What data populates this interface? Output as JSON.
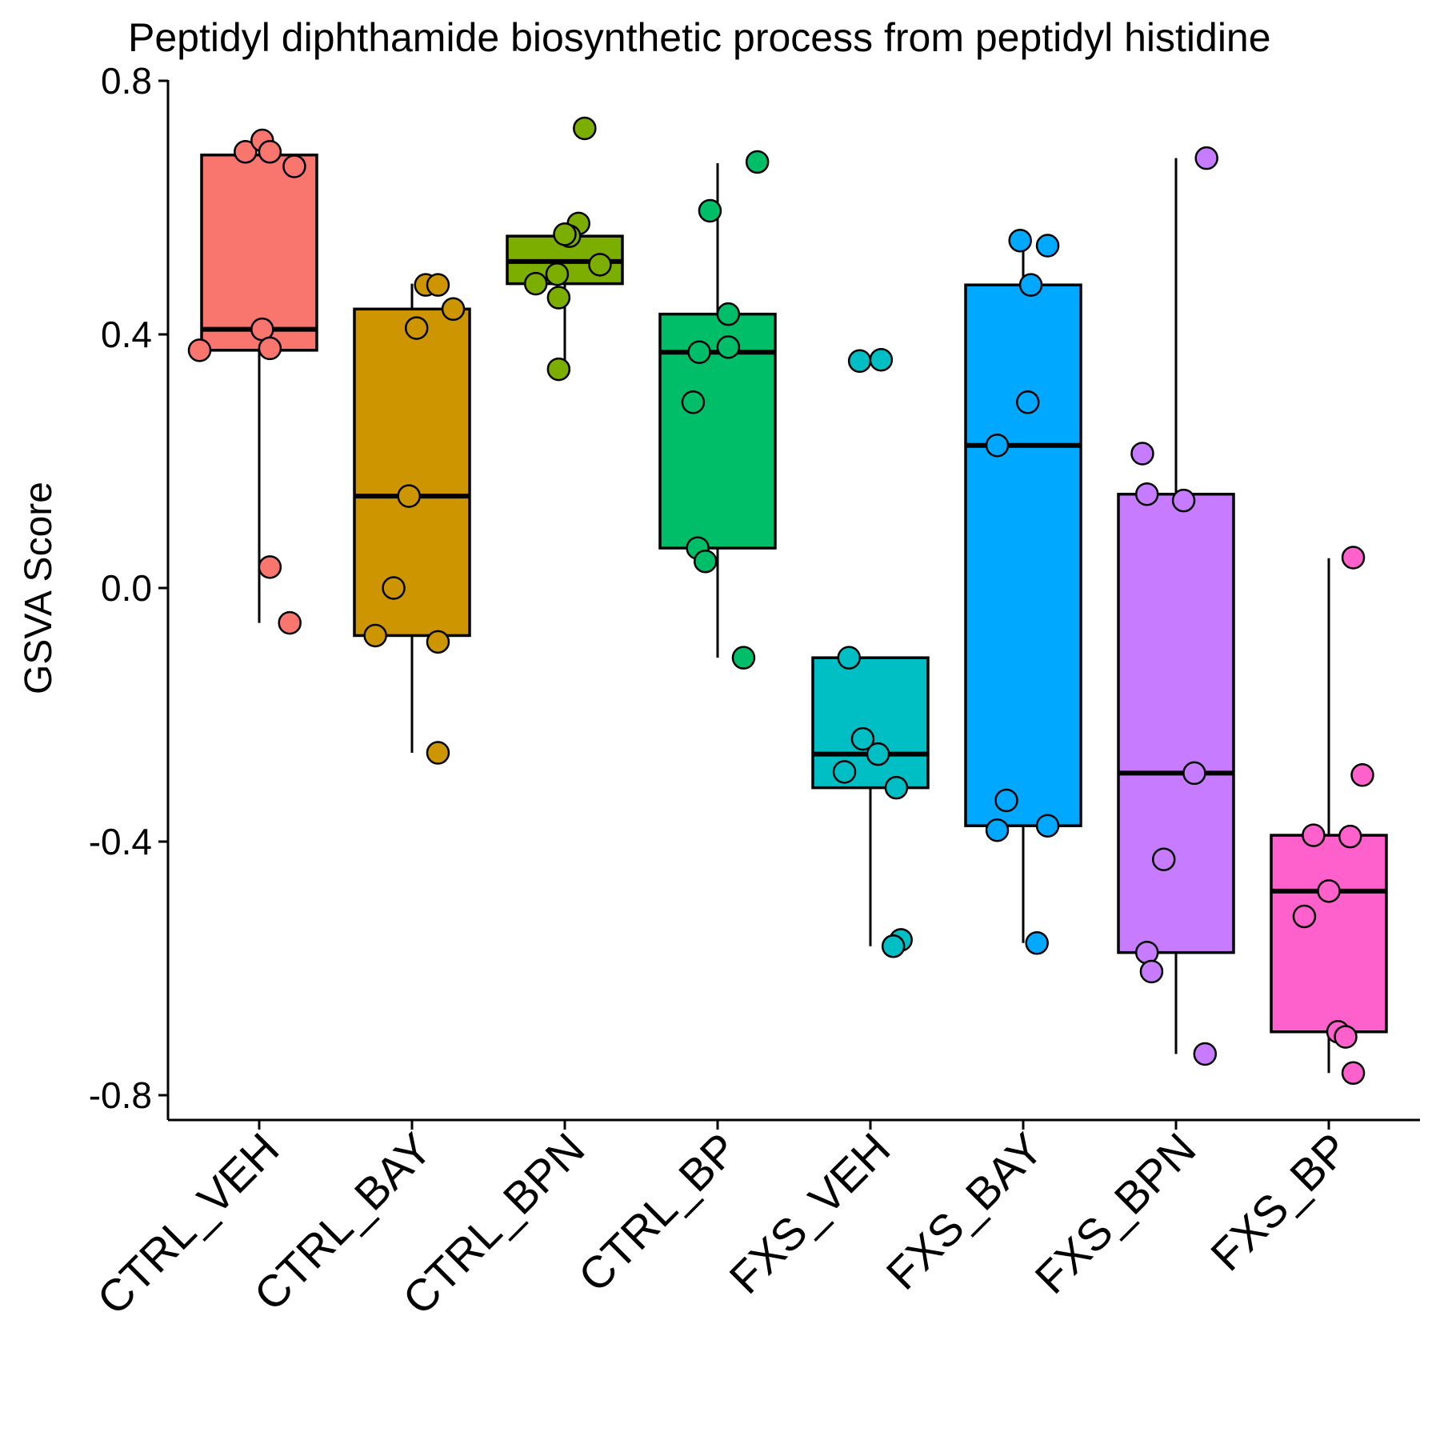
{
  "chart_data": {
    "type": "box",
    "title": "Peptidyl diphthamide biosynthetic process from peptidyl histidine",
    "xlabel": "",
    "ylabel": "GSVA Score",
    "ylim": [
      -0.84,
      0.8
    ],
    "yticks": [
      0.8,
      0.4,
      0.0,
      -0.4,
      -0.8
    ],
    "ytick_labels": [
      "0.8",
      "0.4",
      "0.0",
      "-0.4",
      "-0.8"
    ],
    "grid": false,
    "legend": "none",
    "categories": [
      "CTRL_VEH",
      "CTRL_BAY",
      "CTRL_BPN",
      "CTRL_BP",
      "FXS_VEH",
      "FXS_BAY",
      "FXS_BPN",
      "FXS_BP"
    ],
    "series": [
      {
        "category": "CTRL_VEH",
        "color": "#F8766D",
        "box": {
          "whisker_low": -0.055,
          "q1": 0.375,
          "median": 0.408,
          "q3": 0.683,
          "whisker_high": 0.683
        },
        "points": [
          {
            "x": -0.39,
            "y": 0.375
          },
          {
            "x": -0.09,
            "y": 0.688
          },
          {
            "x": 0.02,
            "y": 0.706
          },
          {
            "x": 0.07,
            "y": 0.688
          },
          {
            "x": 0.23,
            "y": 0.665
          },
          {
            "x": 0.02,
            "y": 0.408
          },
          {
            "x": 0.07,
            "y": 0.378
          },
          {
            "x": 0.07,
            "y": 0.033
          },
          {
            "x": 0.2,
            "y": -0.055
          }
        ]
      },
      {
        "category": "CTRL_BAY",
        "color": "#CD9600",
        "box": {
          "whisker_low": -0.26,
          "q1": -0.075,
          "median": 0.145,
          "q3": 0.44,
          "whisker_high": 0.48
        },
        "points": [
          {
            "x": 0.09,
            "y": 0.478
          },
          {
            "x": 0.17,
            "y": 0.478
          },
          {
            "x": 0.27,
            "y": 0.44
          },
          {
            "x": 0.03,
            "y": 0.41
          },
          {
            "x": -0.02,
            "y": 0.145
          },
          {
            "x": -0.12,
            "y": 0.0
          },
          {
            "x": -0.24,
            "y": -0.075
          },
          {
            "x": 0.17,
            "y": -0.085
          },
          {
            "x": 0.17,
            "y": -0.26
          }
        ]
      },
      {
        "category": "CTRL_BPN",
        "color": "#7CAE00",
        "box": {
          "whisker_low": 0.35,
          "q1": 0.48,
          "median": 0.515,
          "q3": 0.555,
          "whisker_high": 0.555
        },
        "points": [
          {
            "x": 0.13,
            "y": 0.725
          },
          {
            "x": 0.09,
            "y": 0.575
          },
          {
            "x": 0.03,
            "y": 0.555
          },
          {
            "x": 0.0,
            "y": 0.558
          },
          {
            "x": 0.23,
            "y": 0.51
          },
          {
            "x": -0.05,
            "y": 0.495
          },
          {
            "x": -0.19,
            "y": 0.48
          },
          {
            "x": -0.04,
            "y": 0.458
          },
          {
            "x": -0.04,
            "y": 0.345
          }
        ]
      },
      {
        "category": "CTRL_BP",
        "color": "#00BE67",
        "box": {
          "whisker_low": -0.11,
          "q1": 0.063,
          "median": 0.372,
          "q3": 0.432,
          "whisker_high": 0.67
        },
        "points": [
          {
            "x": 0.26,
            "y": 0.672
          },
          {
            "x": -0.05,
            "y": 0.595
          },
          {
            "x": 0.07,
            "y": 0.432
          },
          {
            "x": 0.07,
            "y": 0.38
          },
          {
            "x": -0.12,
            "y": 0.372
          },
          {
            "x": -0.16,
            "y": 0.293
          },
          {
            "x": -0.13,
            "y": 0.063
          },
          {
            "x": -0.08,
            "y": 0.042
          },
          {
            "x": 0.17,
            "y": -0.11
          }
        ]
      },
      {
        "category": "FXS_VEH",
        "color": "#00BFC4",
        "box": {
          "whisker_low": -0.565,
          "q1": -0.315,
          "median": -0.262,
          "q3": -0.11,
          "whisker_high": -0.11
        },
        "points": [
          {
            "x": -0.07,
            "y": 0.358
          },
          {
            "x": 0.07,
            "y": 0.36
          },
          {
            "x": -0.14,
            "y": -0.11
          },
          {
            "x": -0.05,
            "y": -0.238
          },
          {
            "x": 0.05,
            "y": -0.262
          },
          {
            "x": -0.17,
            "y": -0.29
          },
          {
            "x": 0.17,
            "y": -0.315
          },
          {
            "x": 0.2,
            "y": -0.555
          },
          {
            "x": 0.15,
            "y": -0.565
          }
        ]
      },
      {
        "category": "FXS_BAY",
        "color": "#00A9FF",
        "box": {
          "whisker_low": -0.56,
          "q1": -0.375,
          "median": 0.225,
          "q3": 0.478,
          "whisker_high": 0.548
        },
        "points": [
          {
            "x": -0.02,
            "y": 0.548
          },
          {
            "x": 0.16,
            "y": 0.54
          },
          {
            "x": 0.05,
            "y": 0.478
          },
          {
            "x": 0.03,
            "y": 0.293
          },
          {
            "x": -0.17,
            "y": 0.225
          },
          {
            "x": -0.11,
            "y": -0.335
          },
          {
            "x": -0.17,
            "y": -0.382
          },
          {
            "x": 0.16,
            "y": -0.375
          },
          {
            "x": 0.09,
            "y": -0.56
          }
        ]
      },
      {
        "category": "FXS_BPN",
        "color": "#C77CFF",
        "box": {
          "whisker_low": -0.735,
          "q1": -0.575,
          "median": -0.292,
          "q3": 0.148,
          "whisker_high": 0.678
        },
        "points": [
          {
            "x": 0.2,
            "y": 0.678
          },
          {
            "x": -0.22,
            "y": 0.212
          },
          {
            "x": -0.19,
            "y": 0.148
          },
          {
            "x": 0.05,
            "y": 0.138
          },
          {
            "x": 0.12,
            "y": -0.292
          },
          {
            "x": -0.08,
            "y": -0.428
          },
          {
            "x": -0.19,
            "y": -0.575
          },
          {
            "x": -0.16,
            "y": -0.605
          },
          {
            "x": 0.19,
            "y": -0.735
          }
        ]
      },
      {
        "category": "FXS_BP",
        "color": "#FF61CC",
        "box": {
          "whisker_low": -0.765,
          "q1": -0.7,
          "median": -0.478,
          "q3": -0.39,
          "whisker_high": 0.047
        },
        "points": [
          {
            "x": 0.16,
            "y": 0.048
          },
          {
            "x": 0.22,
            "y": -0.295
          },
          {
            "x": -0.1,
            "y": -0.39
          },
          {
            "x": 0.14,
            "y": -0.392
          },
          {
            "x": 0.0,
            "y": -0.478
          },
          {
            "x": -0.16,
            "y": -0.518
          },
          {
            "x": 0.06,
            "y": -0.7
          },
          {
            "x": 0.11,
            "y": -0.708
          },
          {
            "x": 0.16,
            "y": -0.765
          }
        ]
      }
    ]
  }
}
